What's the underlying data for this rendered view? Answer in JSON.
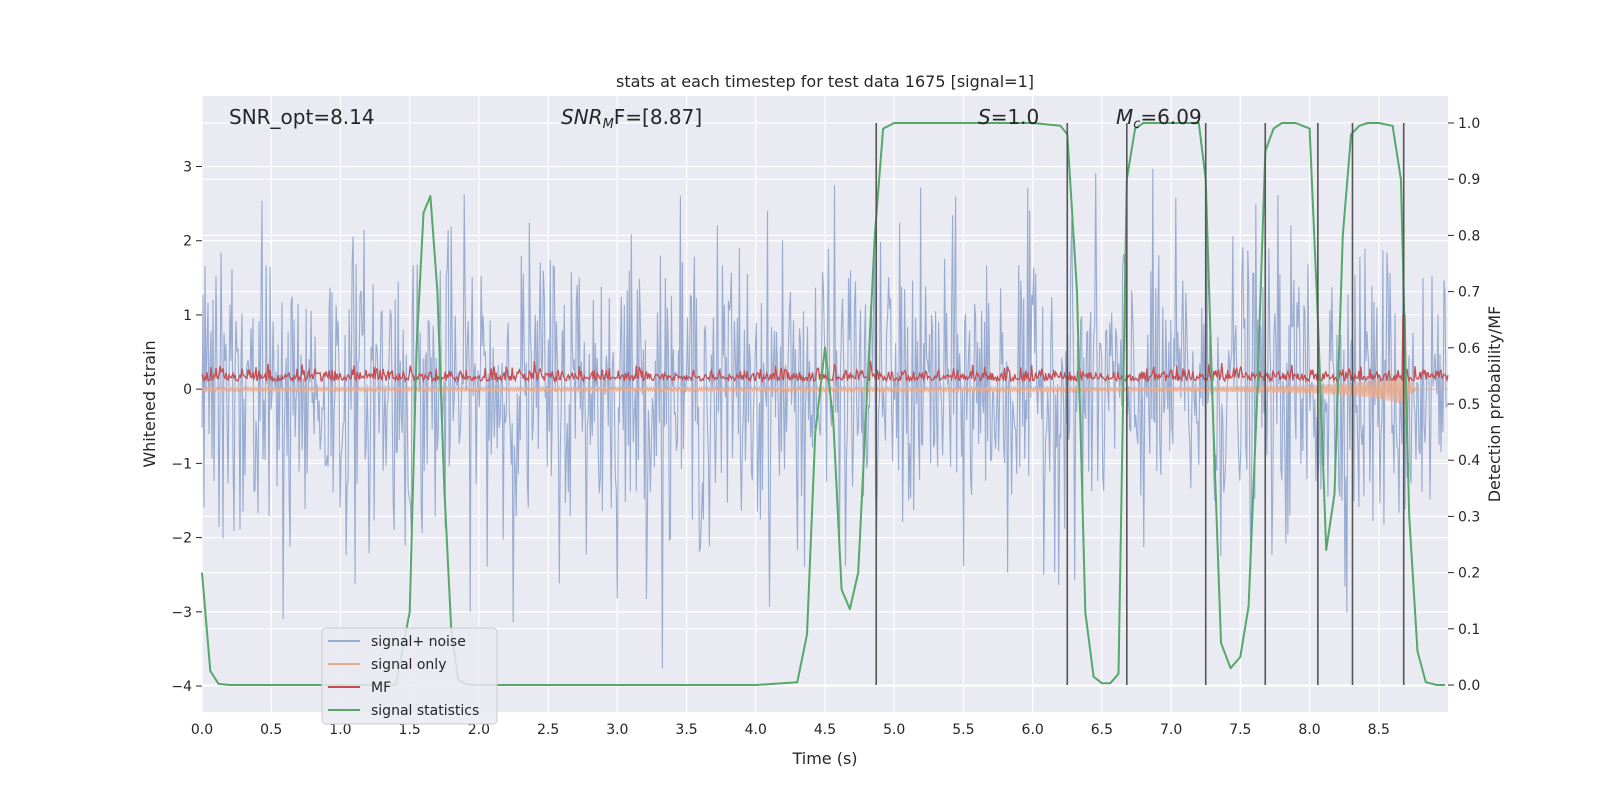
{
  "chart_data": {
    "type": "line",
    "title": "stats at each timestep for test data 1675 [signal=1]",
    "xlabel": "Time (s)",
    "ylabel": "Whitened strain",
    "y2label": "Detection probability/MF",
    "xlim": [
      0.0,
      9.0
    ],
    "ylim": [
      -4.35,
      3.95
    ],
    "y2lim": [
      -0.048,
      1.048
    ],
    "xticks": [
      0.0,
      0.5,
      1.0,
      1.5,
      2.0,
      2.5,
      3.0,
      3.5,
      4.0,
      4.5,
      5.0,
      5.5,
      6.0,
      6.5,
      7.0,
      7.5,
      8.0,
      8.5
    ],
    "yticks": [
      -4,
      -3,
      -2,
      -1,
      0,
      1,
      2,
      3
    ],
    "y2ticks": [
      0.0,
      0.1,
      0.2,
      0.3,
      0.4,
      0.5,
      0.6,
      0.7,
      0.8,
      0.9,
      1.0
    ],
    "grid": true,
    "legend_position": "lower-left",
    "annotations": [
      {
        "text": "SNR_opt=8.14",
        "x": 0.2
      },
      {
        "text": "SNR",
        "sub": "M",
        "rest": "F=[8.87]",
        "x": 2.6
      },
      {
        "text": "S",
        "rest": "=1.0",
        "x": 5.6
      },
      {
        "text": "M",
        "sub": "c",
        "rest": "=6.09",
        "x": 6.6
      }
    ],
    "series": [
      {
        "name": "signal+ noise",
        "color": "#98abd0",
        "kind": "noise",
        "amplitude_sigma": 1.0
      },
      {
        "name": "signal only",
        "color": "#e8a98b",
        "kind": "chirp",
        "tmerge": 8.68
      },
      {
        "name": "MF",
        "color": "#c44e52",
        "kind": "mf"
      },
      {
        "name": "signal statistics",
        "color": "#55a868",
        "kind": "probability",
        "x": [
          0.0,
          0.06,
          0.12,
          0.2,
          0.3,
          0.5,
          1.0,
          1.4,
          1.5,
          1.55,
          1.6,
          1.65,
          1.7,
          1.75,
          1.8,
          1.85,
          1.9,
          1.95,
          2.0,
          2.5,
          3.0,
          3.5,
          4.0,
          4.3,
          4.37,
          4.43,
          4.5,
          4.56,
          4.62,
          4.68,
          4.74,
          4.8,
          4.86,
          4.92,
          5.0,
          5.5,
          6.0,
          6.2,
          6.25,
          6.32,
          6.38,
          6.44,
          6.5,
          6.56,
          6.62,
          6.68,
          6.74,
          6.8,
          7.0,
          7.2,
          7.25,
          7.3,
          7.36,
          7.43,
          7.5,
          7.56,
          7.62,
          7.68,
          7.74,
          7.8,
          7.9,
          8.0,
          8.06,
          8.12,
          8.18,
          8.24,
          8.3,
          8.36,
          8.42,
          8.5,
          8.6,
          8.66,
          8.72,
          8.78,
          8.84,
          8.92,
          8.98
        ],
        "values": [
          0.2,
          0.025,
          0.002,
          0.0,
          0.0,
          0.0,
          0.0,
          0.0,
          0.13,
          0.6,
          0.84,
          0.87,
          0.7,
          0.35,
          0.1,
          0.01,
          0.002,
          0.0,
          0.0,
          0.0,
          0.0,
          0.0,
          0.0,
          0.005,
          0.09,
          0.45,
          0.6,
          0.47,
          0.17,
          0.135,
          0.2,
          0.5,
          0.8,
          0.99,
          1.0,
          1.0,
          1.0,
          0.995,
          0.98,
          0.7,
          0.13,
          0.015,
          0.003,
          0.003,
          0.02,
          0.9,
          0.99,
          1.0,
          1.0,
          1.0,
          0.9,
          0.5,
          0.075,
          0.03,
          0.05,
          0.14,
          0.5,
          0.95,
          0.99,
          1.0,
          1.0,
          0.99,
          0.65,
          0.24,
          0.34,
          0.8,
          0.98,
          0.995,
          1.0,
          1.0,
          0.995,
          0.9,
          0.3,
          0.06,
          0.005,
          0.0,
          0.0
        ]
      },
      {
        "name": "",
        "color": "#555555",
        "kind": "vlines",
        "x": [
          4.87,
          6.25,
          6.68,
          7.25,
          7.68,
          8.06,
          8.31,
          8.68
        ]
      }
    ]
  }
}
